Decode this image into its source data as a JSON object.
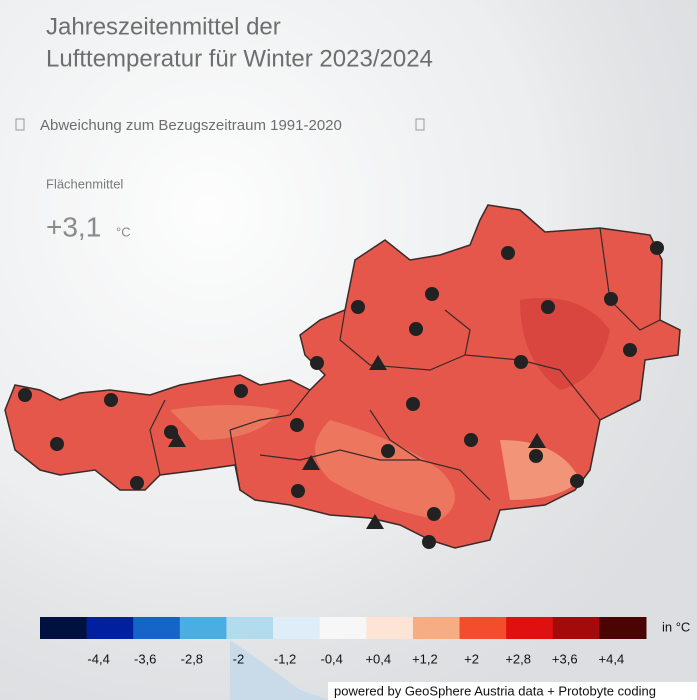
{
  "title_lines": [
    "Jahreszeitenmittel der",
    "Lufttemperatur für Winter 2023/2024"
  ],
  "selector": {
    "label": "Abweichung zum Bezugszeitraum 1991-2020"
  },
  "area_mean": {
    "label": "Flächenmittel",
    "value": "+3,1",
    "unit": "°C"
  },
  "legend": {
    "colors": [
      "#00103f",
      "#0020a0",
      "#1565c8",
      "#4aaee2",
      "#b3dbee",
      "#deedf7",
      "#f7f7f7",
      "#fde4d6",
      "#f6ad84",
      "#f24e2e",
      "#e11010",
      "#a50a0a",
      "#4a0404"
    ],
    "ticks": [
      "-4,4",
      "-3,6",
      "-2,8",
      "-2",
      "-1,2",
      "-0,4",
      "+0,4",
      "+1,2",
      "+2",
      "+2,8",
      "+3,6",
      "+4,4"
    ],
    "unit": "in °C"
  },
  "credit": "powered by GeoSphere Austria data + Protobyte coding"
}
